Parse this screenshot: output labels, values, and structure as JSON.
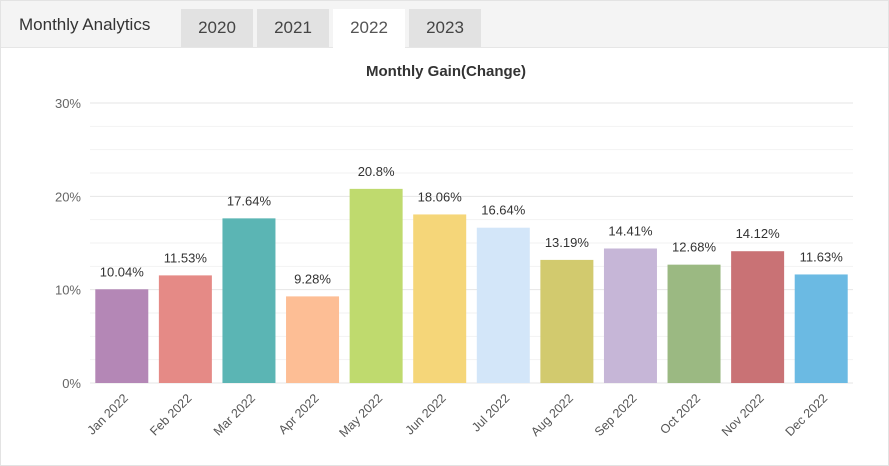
{
  "widget": {
    "title": "Monthly Analytics"
  },
  "tabs": [
    {
      "label": "2020",
      "active": false
    },
    {
      "label": "2021",
      "active": false
    },
    {
      "label": "2022",
      "active": true
    },
    {
      "label": "2023",
      "active": false
    }
  ],
  "chart_data": {
    "type": "bar",
    "title": "Monthly Gain(Change)",
    "xlabel": "",
    "ylabel": "",
    "ylim": [
      0,
      30
    ],
    "yticks": [
      "0%",
      "10%",
      "20%",
      "30%"
    ],
    "categories": [
      "Jan 2022",
      "Feb 2022",
      "Mar 2022",
      "Apr 2022",
      "May 2022",
      "Jun 2022",
      "Jul 2022",
      "Aug 2022",
      "Sep 2022",
      "Oct 2022",
      "Nov 2022",
      "Dec 2022"
    ],
    "values": [
      10.04,
      11.53,
      17.64,
      9.28,
      20.8,
      18.06,
      16.64,
      13.19,
      14.41,
      12.68,
      14.12,
      11.63
    ],
    "value_labels": [
      "10.04%",
      "11.53%",
      "17.64%",
      "9.28%",
      "20.8%",
      "18.06%",
      "16.64%",
      "13.19%",
      "14.41%",
      "12.68%",
      "14.12%",
      "11.63%"
    ],
    "colors": [
      "#b487b6",
      "#e58a86",
      "#5bb5b4",
      "#fdbe95",
      "#bfda6e",
      "#f5d679",
      "#d3e6f9",
      "#d2ca6e",
      "#c6b6d7",
      "#9bb982",
      "#c97275",
      "#6bbae3"
    ],
    "grid": true,
    "legend": "none"
  }
}
